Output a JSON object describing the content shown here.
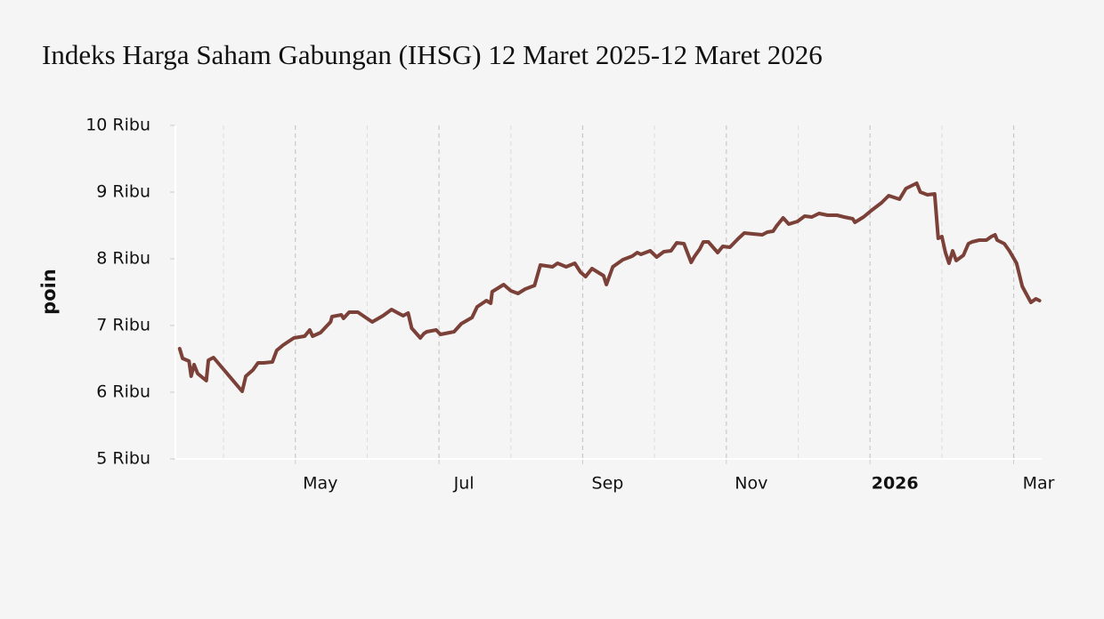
{
  "chart_data": {
    "type": "line",
    "title": "Indeks Harga Saham Gabungan (IHSG) 12 Maret 2025-12 Maret 2026",
    "y_label": "poin",
    "color": "#7b4138",
    "xlim": [
      3.33,
      15.39
    ],
    "xticks": [
      {
        "value": 5,
        "label": "May"
      },
      {
        "value": 7,
        "label": "Jul"
      },
      {
        "value": 9,
        "label": "Sep"
      },
      {
        "value": 11,
        "label": "Nov"
      },
      {
        "value": 13,
        "label": "2026"
      },
      {
        "value": 15,
        "label": "Mar"
      }
    ],
    "minor_xticks": [
      4,
      6,
      8,
      10,
      12,
      14
    ],
    "ylim": [
      5000,
      10000
    ],
    "yticks": [
      {
        "value": 5000,
        "label": "5 Ribu"
      },
      {
        "value": 6000,
        "label": "6 Ribu"
      },
      {
        "value": 7000,
        "label": "7 Ribu"
      },
      {
        "value": 8000,
        "label": "8 Ribu"
      },
      {
        "value": 9000,
        "label": "9 Ribu"
      },
      {
        "value": 10000,
        "label": "10 Ribu"
      }
    ],
    "x": [
      3.39,
      3.43,
      3.52,
      3.55,
      3.59,
      3.64,
      3.76,
      3.79,
      3.86,
      4.26,
      4.31,
      4.41,
      4.48,
      4.56,
      4.68,
      4.74,
      4.83,
      4.98,
      5.13,
      5.2,
      5.24,
      5.35,
      5.49,
      5.51,
      5.64,
      5.67,
      5.75,
      5.87,
      6.07,
      6.22,
      6.34,
      6.43,
      6.5,
      6.57,
      6.62,
      6.74,
      6.79,
      6.83,
      6.96,
      7.02,
      7.21,
      7.31,
      7.46,
      7.53,
      7.66,
      7.72,
      7.74,
      7.9,
      8.0,
      8.1,
      8.2,
      8.33,
      8.41,
      8.58,
      8.65,
      8.77,
      8.89,
      8.97,
      9.04,
      9.13,
      9.29,
      9.33,
      9.42,
      9.56,
      9.69,
      9.76,
      9.81,
      9.94,
      10.03,
      10.13,
      10.23,
      10.31,
      10.41,
      10.51,
      10.56,
      10.63,
      10.68,
      10.75,
      10.88,
      10.95,
      11.05,
      11.17,
      11.25,
      11.37,
      11.5,
      11.57,
      11.65,
      11.7,
      11.79,
      11.87,
      11.99,
      12.09,
      12.19,
      12.29,
      12.41,
      12.54,
      12.64,
      12.76,
      12.79,
      12.91,
      13.03,
      13.16,
      13.26,
      13.41,
      13.5,
      13.65,
      13.7,
      13.8,
      13.9,
      13.95,
      14.0,
      14.05,
      14.1,
      14.15,
      14.2,
      14.3,
      14.37,
      14.42,
      14.52,
      14.62,
      14.69,
      14.74,
      14.77,
      14.87,
      14.94,
      15.04,
      15.12,
      15.16,
      15.24,
      15.31,
      15.36
    ],
    "values": [
      6653,
      6507,
      6467,
      6240,
      6413,
      6280,
      6173,
      6480,
      6520,
      6013,
      6240,
      6333,
      6440,
      6440,
      6453,
      6627,
      6707,
      6813,
      6840,
      6933,
      6840,
      6893,
      7053,
      7133,
      7160,
      7107,
      7200,
      7200,
      7053,
      7147,
      7240,
      7187,
      7147,
      7187,
      6960,
      6813,
      6880,
      6907,
      6933,
      6867,
      6907,
      7027,
      7120,
      7280,
      7373,
      7333,
      7507,
      7613,
      7520,
      7480,
      7547,
      7600,
      7907,
      7880,
      7933,
      7880,
      7933,
      7800,
      7733,
      7853,
      7747,
      7613,
      7880,
      7987,
      8040,
      8093,
      8067,
      8120,
      8027,
      8107,
      8120,
      8240,
      8227,
      7947,
      8040,
      8147,
      8253,
      8253,
      8093,
      8187,
      8173,
      8307,
      8387,
      8373,
      8360,
      8400,
      8413,
      8493,
      8613,
      8520,
      8560,
      8640,
      8627,
      8680,
      8653,
      8653,
      8627,
      8600,
      8547,
      8627,
      8733,
      8840,
      8947,
      8893,
      9053,
      9133,
      9000,
      8960,
      8973,
      8307,
      8333,
      8093,
      7933,
      8120,
      7973,
      8053,
      8227,
      8253,
      8280,
      8280,
      8333,
      8360,
      8280,
      8227,
      8120,
      7933,
      7587,
      7507,
      7347,
      7400,
      7373
    ]
  }
}
